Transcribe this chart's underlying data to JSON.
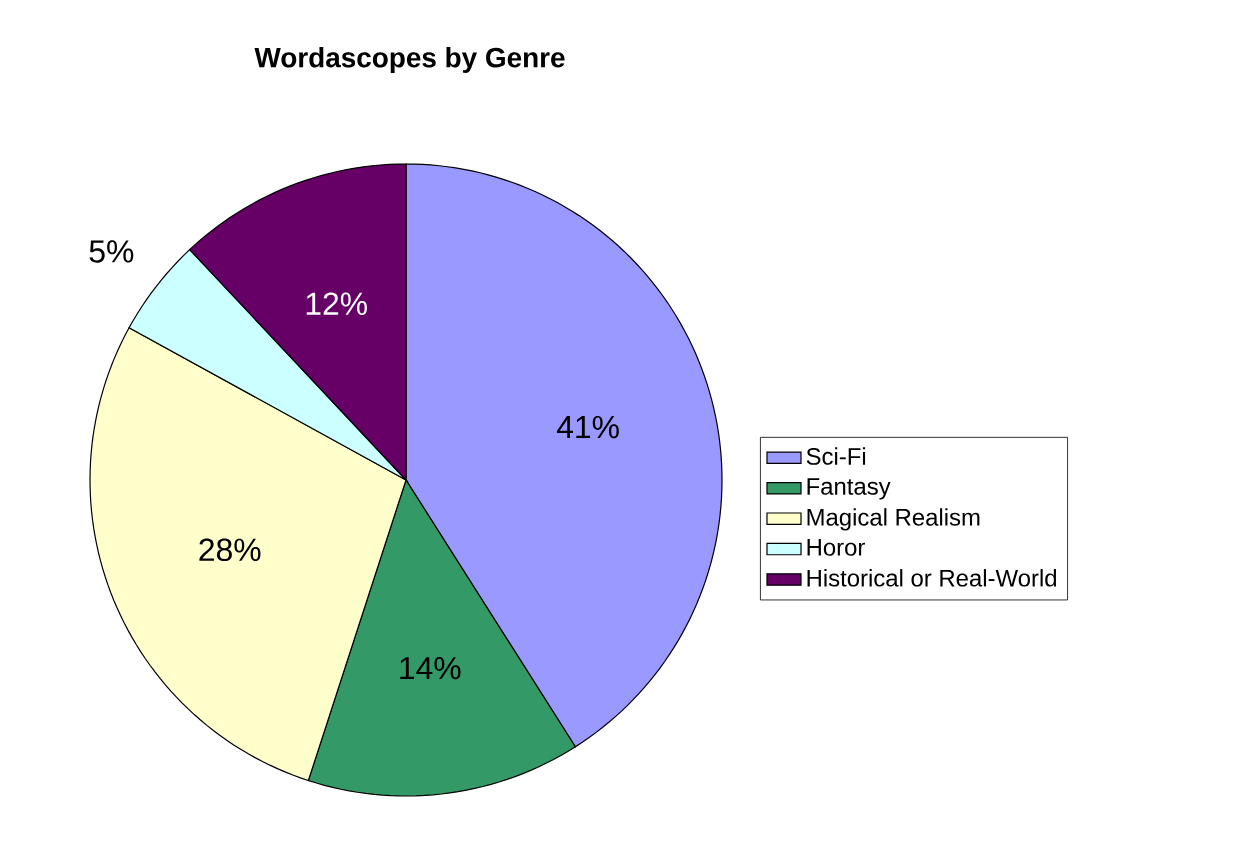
{
  "chart_data": {
    "type": "pie",
    "title": "Wordascopes by Genre",
    "categories": [
      "Sci-Fi",
      "Fantasy",
      "Magical Realism",
      "Horor",
      "Historical or Real-World"
    ],
    "values": [
      41,
      14,
      28,
      5,
      12
    ],
    "colors": [
      "#9999ff",
      "#339966",
      "#ffffcc",
      "#ccffff",
      "#660066"
    ],
    "value_labels": [
      "41%",
      "14%",
      "28%",
      "5%",
      "12%"
    ],
    "legend": "right"
  }
}
